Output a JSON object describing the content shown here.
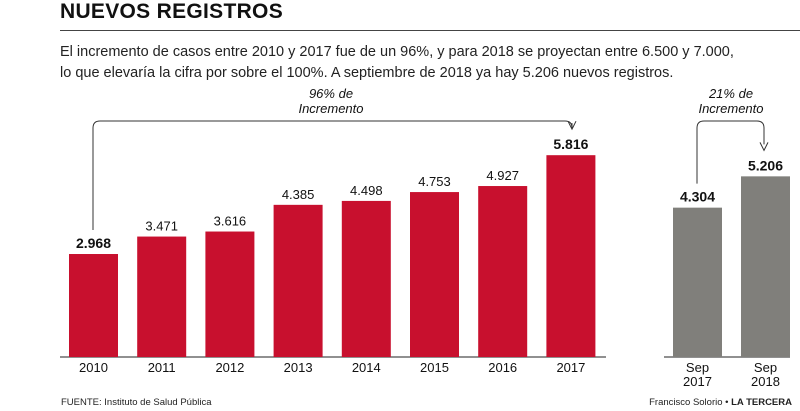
{
  "header": {
    "title": "NUEVOS REGISTROS",
    "subtitle_line1": "El incremento de casos entre 2010 y 2017 fue de un 96%, y para 2018 se proyectan entre 6.500 y 7.000,",
    "subtitle_line2": "lo que elevaría la cifra por sobre el 100%. A septiembre de 2018 ya hay 5.206 nuevos registros."
  },
  "chart_data": [
    {
      "type": "bar",
      "categories": [
        "2010",
        "2011",
        "2012",
        "2013",
        "2014",
        "2015",
        "2016",
        "2017"
      ],
      "values": [
        2968,
        3471,
        3616,
        4385,
        4498,
        4753,
        4927,
        5816
      ],
      "value_labels": [
        "2.968",
        "3.471",
        "3.616",
        "4.385",
        "4.498",
        "4.753",
        "4.927",
        "5.816"
      ],
      "bold_labels": [
        true,
        false,
        false,
        false,
        false,
        false,
        false,
        true
      ],
      "color": "#c8102e",
      "annotation": {
        "line1": "96% de",
        "line2": "Incremento",
        "from": "2010",
        "to": "2017"
      }
    },
    {
      "type": "bar",
      "categories": [
        [
          "Sep",
          "2017"
        ],
        [
          "Sep",
          "2018"
        ]
      ],
      "values": [
        4304,
        5206
      ],
      "value_labels": [
        "4.304",
        "5.206"
      ],
      "bold_labels": [
        true,
        true
      ],
      "color": "#807f7b",
      "annotation": {
        "line1": "21% de",
        "line2": "Incremento",
        "from": "Sep 2017",
        "to": "Sep 2018"
      }
    }
  ],
  "footer": {
    "source": "FUENTE: Instituto de Salud Pública",
    "author": "Francisco Solorio",
    "separator": " • ",
    "outlet": "LA TERCERA"
  }
}
